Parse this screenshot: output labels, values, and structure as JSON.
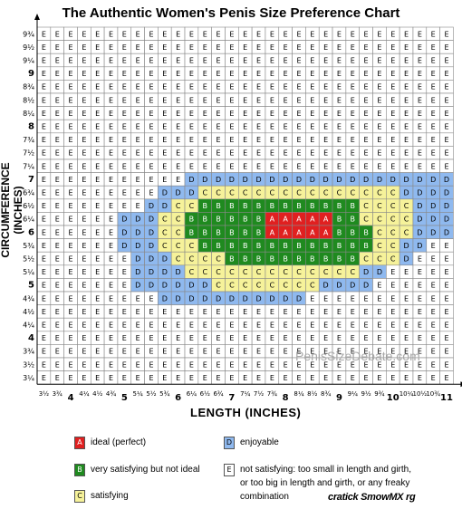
{
  "title": "The Authentic Women's Penis Size Preference Chart",
  "watermark": "PenisSizeDebate.com",
  "corner_mark": "cratick SmowMX rg",
  "legend": [
    {
      "code": "A",
      "label": "ideal (perfect)",
      "color": "#e02020"
    },
    {
      "code": "B",
      "label": "very satisfying but not ideal",
      "color": "#1f8a1f"
    },
    {
      "code": "C",
      "label": "satisfying",
      "color": "#f6f29a"
    },
    {
      "code": "D",
      "label": "enjoyable",
      "color": "#8fb9ef"
    },
    {
      "code": "E",
      "label": "not satisfying: too small in length and girth, or too big in length and girth, or any freaky combination",
      "color": "#ffffff"
    }
  ],
  "chart_data": {
    "type": "heatmap",
    "title": "The Authentic Women's Penis Size Preference Chart",
    "xlabel": "LENGTH  (INCHES)",
    "ylabel": "CIRCUMFERENCE (INCHES)",
    "x_ticks": [
      "3½",
      "3¾",
      "4",
      "4¼",
      "4½",
      "4¾",
      "5",
      "5¼",
      "5½",
      "5¾",
      "6",
      "6¼",
      "6½",
      "6¾",
      "7",
      "7¼",
      "7½",
      "7¾",
      "8",
      "8¼",
      "8½",
      "8¾",
      "9",
      "9¼",
      "9½",
      "9¾",
      "10",
      "10¼",
      "10½",
      "10¾",
      "11"
    ],
    "y_ticks": [
      "9¾",
      "9½",
      "9¼",
      "9",
      "8¾",
      "8½",
      "8¼",
      "8",
      "7¾",
      "7½",
      "7¼",
      "7",
      "6¾",
      "6½",
      "6¼",
      "6",
      "5¾",
      "5½",
      "5¼",
      "5",
      "4¾",
      "4½",
      "4¼",
      "4",
      "3¾",
      "3½",
      "3¼"
    ],
    "rows": [
      "EEEEEEEEEEEEEEEEEEEEEEEEEEEEEEE",
      "EEEEEEEEEEEEEEEEEEEEEEEEEEEEEEE",
      "EEEEEEEEEEEEEEEEEEEEEEEEEEEEEEE",
      "EEEEEEEEEEEEEEEEEEEEEEEEEEEEEEE",
      "EEEEEEEEEEEEEEEEEEEEEEEEEEEEEEE",
      "EEEEEEEEEEEEEEEEEEEEEEEEEEEEEEE",
      "EEEEEEEEEEEEEEEEEEEEEEEEEEEEEEE",
      "EEEEEEEEEEEEEEEEEEEEEEEEEEEEEEE",
      "EEEEEEEEEEEEEEEEEEEEEEEEEEEEEEE",
      "EEEEEEEEEEEEEEEEEEEEEEEEEEEEEEE",
      "EEEEEEEEEEEEEEEEEEEEEEEEEEEEEEE",
      "EEEEEEEEEEEDDDDDDDDDDDDDDDDDDDD",
      "EEEEEEEEEDDDCCCCCCCCCCCCCCCDDDD",
      "EEEEEEEEDDCCBBBBBBBBBBBBCCCCDDD",
      "EEEEEEDDDCCBBBBBBAAAAABBCCCCDDD",
      "EEEEEEDDDCCBBBBBBAAAAABBBCCCDDD",
      "EEEEEEDDDCCCBBBBBBBBBBBBBCCDDEE",
      "EEEEEEEDDDCCCCBBBBBBBBBBCCCDEEE",
      "EEEEEEEDDDDCCCCCCCCCCCCCDDEEEEE",
      "EEEEEEEDDDDDDCCCCCCCCDDDDEEEEEE",
      "EEEEEEEEEDDDDDDDDDDDEEEEEEEEEEE",
      "EEEEEEEEEEEEEEEEEEEEEEEEEEEEEEE",
      "EEEEEEEEEEEEEEEEEEEEEEEEEEEEEEE",
      "EEEEEEEEEEEEEEEEEEEEEEEEEEEEEEE",
      "EEEEEEEEEEEEEEEEEEEEEEEEEEEEEEE",
      "EEEEEEEEEEEEEEEEEEEEEEEEEEEEEEE",
      "EEEEEEEEEEEEEEEEEEEEEEEEEEEEEEE"
    ],
    "category_colors": {
      "A": "#e02020",
      "B": "#1f8a1f",
      "C": "#f6f29a",
      "D": "#8fb9ef",
      "E": "#ffffff"
    },
    "grid": true
  }
}
